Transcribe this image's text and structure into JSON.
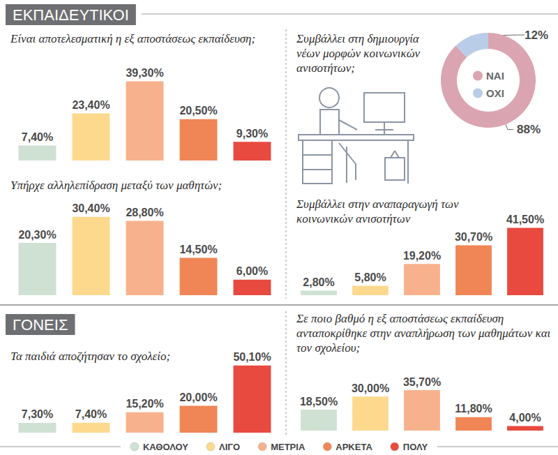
{
  "sections": [
    "ΕΚΠΑΙΔΕΥΤΙΚΟΙ",
    "ΓΟΝΕΙΣ"
  ],
  "chart_data": [
    {
      "type": "bar",
      "title": "Είναι αποτελεσματική η εξ αποστάσεως εκπαίδευση;",
      "categories": [
        "ΚΑΘΟΛΟΥ",
        "ΛΙΓΟ",
        "ΜΕΤΡΙΑ",
        "ΑΡΚΕΤΑ",
        "ΠΟΛΥ"
      ],
      "values": [
        7.4,
        23.4,
        39.3,
        20.5,
        9.3
      ],
      "value_labels": [
        "7,40%",
        "23,40%",
        "39,30%",
        "20,50%",
        "9,30%"
      ],
      "colors": [
        "#cfe1d2",
        "#fdd98e",
        "#f7b28d",
        "#f08656",
        "#e84a3f"
      ],
      "ylim": [
        0,
        45
      ],
      "grid": false,
      "tick_labels": false,
      "data_labels": true,
      "legend": "bottom"
    },
    {
      "type": "bar",
      "title": "Υπήρχε αλληλεπίδραση μεταξύ των μαθητών;",
      "categories": [
        "ΚΑΘΟΛΟΥ",
        "ΛΙΓΟ",
        "ΜΕΤΡΙΑ",
        "ΑΡΚΕΤΑ",
        "ΠΟΛΥ"
      ],
      "values": [
        20.3,
        30.4,
        28.8,
        14.5,
        6.0
      ],
      "value_labels": [
        "20,30%",
        "30,40%",
        "28,80%",
        "14,50%",
        "6,00%"
      ],
      "colors": [
        "#cfe1d2",
        "#fdd98e",
        "#f7b28d",
        "#f08656",
        "#e84a3f"
      ],
      "ylim": [
        0,
        36
      ],
      "grid": false,
      "tick_labels": false,
      "data_labels": true,
      "legend": "bottom"
    },
    {
      "type": "pie",
      "title": "Συμβάλλει στη δημιουργία νέων μορφών κοινωνικών ανισοτήτων;",
      "categories": [
        "ΝΑΙ",
        "ΟΧΙ"
      ],
      "values": [
        88,
        12
      ],
      "value_labels": [
        "88%",
        "12%"
      ],
      "colors": [
        "#dba4b1",
        "#b9cde8"
      ],
      "data_labels": true,
      "legend": "center"
    },
    {
      "type": "bar",
      "title": "Συμβάλλει στην αναπαραγωγή των κοινωνικών ανισοτήτων",
      "categories": [
        "ΚΑΘΟΛΟΥ",
        "ΛΙΓΟ",
        "ΜΕΤΡΙΑ",
        "ΑΡΚΕΤΑ",
        "ΠΟΛΥ"
      ],
      "values": [
        2.8,
        5.8,
        19.2,
        30.7,
        41.5
      ],
      "value_labels": [
        "2,80%",
        "5,80%",
        "19,20%",
        "30,70%",
        "41,50%"
      ],
      "colors": [
        "#cfe1d2",
        "#fdd98e",
        "#f7b28d",
        "#f08656",
        "#e84a3f"
      ],
      "ylim": [
        0,
        43
      ],
      "grid": false,
      "tick_labels": false,
      "data_labels": true,
      "legend": "bottom"
    },
    {
      "type": "bar",
      "title": "Τα παιδιά αποζήτησαν το σχολείο;",
      "categories": [
        "ΚΑΘΟΛΟΥ",
        "ΛΙΓΟ",
        "ΜΕΤΡΙΑ",
        "ΑΡΚΕΤΑ",
        "ΠΟΛΥ"
      ],
      "values": [
        7.3,
        7.4,
        15.2,
        20.0,
        50.1
      ],
      "value_labels": [
        "7,30%",
        "7,40%",
        "15,20%",
        "20,00%",
        "50,10%"
      ],
      "colors": [
        "#cfe1d2",
        "#fdd98e",
        "#f7b28d",
        "#f08656",
        "#e84a3f"
      ],
      "ylim": [
        0,
        52
      ],
      "grid": false,
      "tick_labels": false,
      "data_labels": true,
      "legend": "bottom"
    },
    {
      "type": "bar",
      "title": "Σε ποιο βαθμό η εξ αποστάσεως εκπαίδευση ανταποκρίθηκε στην αναπλήρωση των μαθημάτων και τον σχολείου;",
      "categories": [
        "ΚΑΘΟΛΟΥ",
        "ΛΙΓΟ",
        "ΜΕΤΡΙΑ",
        "ΑΡΚΕΤΑ",
        "ΠΟΛΥ"
      ],
      "values": [
        18.5,
        30.0,
        35.7,
        11.8,
        4.0
      ],
      "value_labels": [
        "18,50%",
        "30,00%",
        "35,70%",
        "11,80%",
        "4,00%"
      ],
      "colors": [
        "#cfe1d2",
        "#fdd98e",
        "#f7b28d",
        "#f08656",
        "#e84a3f"
      ],
      "ylim": [
        0,
        37
      ],
      "grid": false,
      "tick_labels": false,
      "data_labels": true,
      "legend": "bottom"
    }
  ]
}
